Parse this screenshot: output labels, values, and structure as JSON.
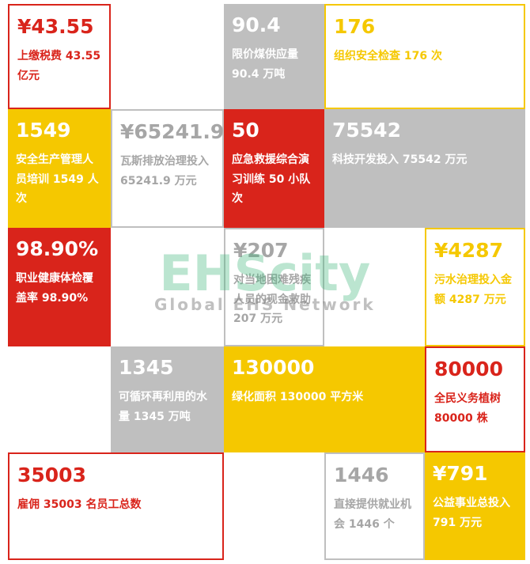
{
  "tiles": [
    {
      "value": "¥43.55",
      "text": "上缴税费 43.55 亿元",
      "color": "#d9241b",
      "filled": false
    },
    {
      "value": "90.4",
      "text": "限价煤供应量 90.4 万吨",
      "color": "#bfbfbf",
      "filled": true
    },
    {
      "value": "176",
      "text": "组织安全检查 176 次",
      "color": "#f5c800",
      "filled": false
    },
    {
      "value": "1549",
      "text": "安全生产管理人员培训 1549 人次",
      "color": "#f5c800",
      "filled": true
    },
    {
      "value": "¥65241.9",
      "text": "瓦斯排放治理投入 65241.9 万元",
      "color": "#bfbfbf",
      "filled": false
    },
    {
      "value": "50",
      "text": "应急救援综合演习训练 50 小队次",
      "color": "#d9241b",
      "filled": true
    },
    {
      "value": "75542",
      "text": "科技开发投入 75542 万元",
      "color": "#bfbfbf",
      "filled": true
    },
    {
      "value": "98.90%",
      "text": "职业健康体检覆盖率 98.90%",
      "color": "#d9241b",
      "filled": true
    },
    {
      "value": "¥207",
      "text": "对当地困难残疾人员的现金救助 207 万元",
      "color": "#bfbfbf",
      "filled": false
    },
    {
      "value": "¥4287",
      "text": "污水治理投入金额 4287 万元",
      "color": "#f5c800",
      "filled": false
    },
    {
      "value": "1345",
      "text": "可循环再利用的水量 1345 万吨",
      "color": "#bfbfbf",
      "filled": true
    },
    {
      "value": "130000",
      "text": "绿化面积 130000 平方米",
      "color": "#f5c800",
      "filled": true
    },
    {
      "value": "80000",
      "text": "全民义务植树 80000 株",
      "color": "#d9241b",
      "filled": false
    },
    {
      "value": "35003",
      "text": "雇佣 35003 名员工总数",
      "color": "#d9241b",
      "filled": false
    },
    {
      "value": "1446",
      "text": "直接提供就业机会 1446 个",
      "color": "#bfbfbf",
      "filled": false
    },
    {
      "value": "¥791",
      "text": "公益事业总投入 791 万元",
      "color": "#f5c800",
      "filled": true
    }
  ],
  "watermark": {
    "logo": "EHScity",
    "tagline": "Global EHS Network"
  }
}
